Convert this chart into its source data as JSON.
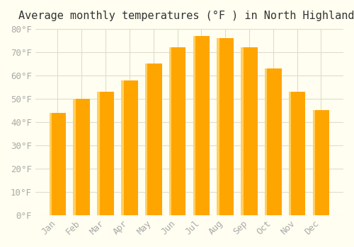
{
  "title": "Average monthly temperatures (°F ) in North Highlands",
  "months": [
    "Jan",
    "Feb",
    "Mar",
    "Apr",
    "May",
    "Jun",
    "Jul",
    "Aug",
    "Sep",
    "Oct",
    "Nov",
    "Dec"
  ],
  "values": [
    44,
    50,
    53,
    58,
    65,
    72,
    77,
    76,
    72,
    63,
    53,
    45
  ],
  "bar_color_face": "#FFA500",
  "bar_color_edge": "#FFB733",
  "background_color": "#FFFEF0",
  "grid_color": "#DDDDCC",
  "ylim": [
    0,
    80
  ],
  "yticks": [
    0,
    10,
    20,
    30,
    40,
    50,
    60,
    70,
    80
  ],
  "title_fontsize": 11,
  "tick_fontsize": 9,
  "tick_color": "#AAAAAA"
}
